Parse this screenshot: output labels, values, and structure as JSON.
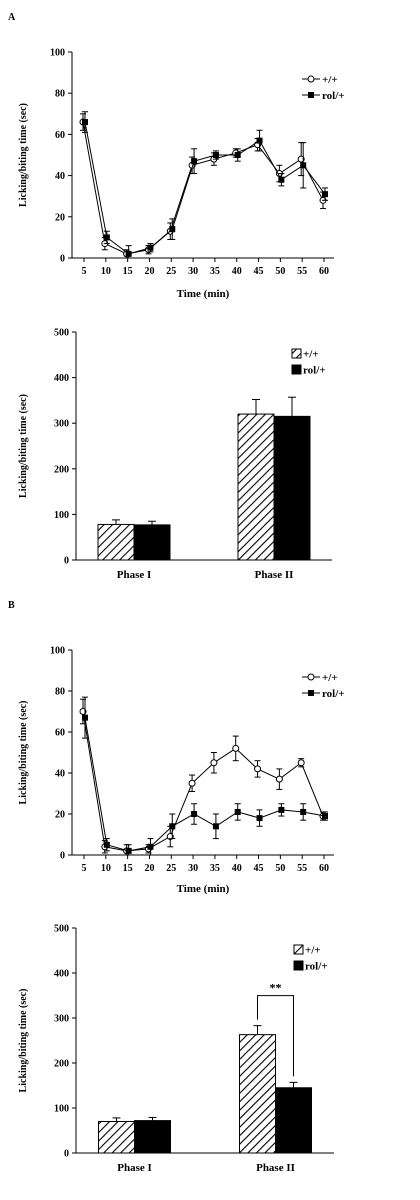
{
  "figure": {
    "panel_a": "A",
    "panel_b": "B"
  },
  "colors": {
    "axis": "#000000",
    "wt": "#ffffff",
    "rol": "#000000"
  },
  "chart_data": [
    {
      "type": "line",
      "ylabel": "Licking/biting time (sec)",
      "xlabel": "Time (min)",
      "x": [
        5,
        10,
        15,
        20,
        25,
        30,
        35,
        40,
        45,
        50,
        55,
        60
      ],
      "xticks": [
        "5",
        "10",
        "15",
        "20",
        "25",
        "30",
        "35",
        "40",
        "45",
        "50",
        "55",
        "60"
      ],
      "yticks": [
        0,
        20,
        40,
        60,
        80,
        100
      ],
      "ylim": [
        0,
        100
      ],
      "legend_position": "top-right",
      "series": [
        {
          "name": "+/+",
          "marker": "open-circle",
          "values": [
            66,
            7,
            2,
            4,
            13,
            45,
            48,
            51,
            55,
            41,
            48,
            28
          ],
          "errors": [
            4,
            3,
            2,
            2,
            4,
            4,
            3,
            2,
            3,
            4,
            8,
            4
          ]
        },
        {
          "name": "rol/+",
          "marker": "filled-square",
          "values": [
            66,
            10,
            2,
            5,
            14,
            47,
            50,
            50,
            57,
            38,
            45,
            31
          ],
          "errors": [
            5,
            3,
            4,
            2,
            5,
            6,
            2,
            3,
            5,
            3,
            11,
            3
          ]
        }
      ]
    },
    {
      "type": "bar",
      "ylabel": "Licking/biting time (sec)",
      "categories": [
        "Phase I",
        "Phase II"
      ],
      "yticks": [
        0,
        100,
        200,
        300,
        400,
        500
      ],
      "ylim": [
        0,
        500
      ],
      "legend_position": "top-right",
      "series": [
        {
          "name": "+/+",
          "pattern": "hatched",
          "values": [
            78,
            320
          ],
          "errors": [
            10,
            32
          ]
        },
        {
          "name": "rol/+",
          "pattern": "solid",
          "values": [
            77,
            315
          ],
          "errors": [
            8,
            42
          ]
        }
      ]
    },
    {
      "type": "line",
      "ylabel": "Licking/biting time (sec)",
      "xlabel": "Time (min)",
      "x": [
        5,
        10,
        15,
        20,
        25,
        30,
        35,
        40,
        45,
        50,
        55,
        60
      ],
      "xticks": [
        "5",
        "10",
        "15",
        "20",
        "25",
        "30",
        "35",
        "40",
        "45",
        "50",
        "55",
        "60"
      ],
      "yticks": [
        0,
        20,
        40,
        60,
        80,
        100
      ],
      "ylim": [
        0,
        100
      ],
      "legend_position": "top-right",
      "series": [
        {
          "name": "+/+",
          "marker": "open-circle",
          "values": [
            70,
            4,
            2,
            3,
            9,
            35,
            45,
            52,
            42,
            37,
            45,
            19
          ],
          "errors": [
            6,
            3,
            3,
            2,
            5,
            4,
            5,
            6,
            4,
            5,
            2,
            2
          ]
        },
        {
          "name": "rol/+",
          "marker": "filled-square",
          "values": [
            67,
            5,
            2,
            4,
            14,
            20,
            14,
            21,
            18,
            22,
            21,
            19
          ],
          "errors": [
            10,
            3,
            3,
            4,
            6,
            5,
            6,
            4,
            4,
            3,
            4,
            2
          ]
        }
      ]
    },
    {
      "type": "bar",
      "ylabel": "Licking/biting time (sec)",
      "categories": [
        "Phase I",
        "Phase II"
      ],
      "yticks": [
        0,
        100,
        200,
        300,
        400,
        500
      ],
      "ylim": [
        0,
        500
      ],
      "legend_position": "top-right",
      "annotation": "**",
      "series": [
        {
          "name": "+/+",
          "pattern": "hatched",
          "values": [
            70,
            263
          ],
          "errors": [
            8,
            20
          ]
        },
        {
          "name": "rol/+",
          "pattern": "solid",
          "values": [
            72,
            145
          ],
          "errors": [
            7,
            12
          ]
        }
      ]
    }
  ]
}
